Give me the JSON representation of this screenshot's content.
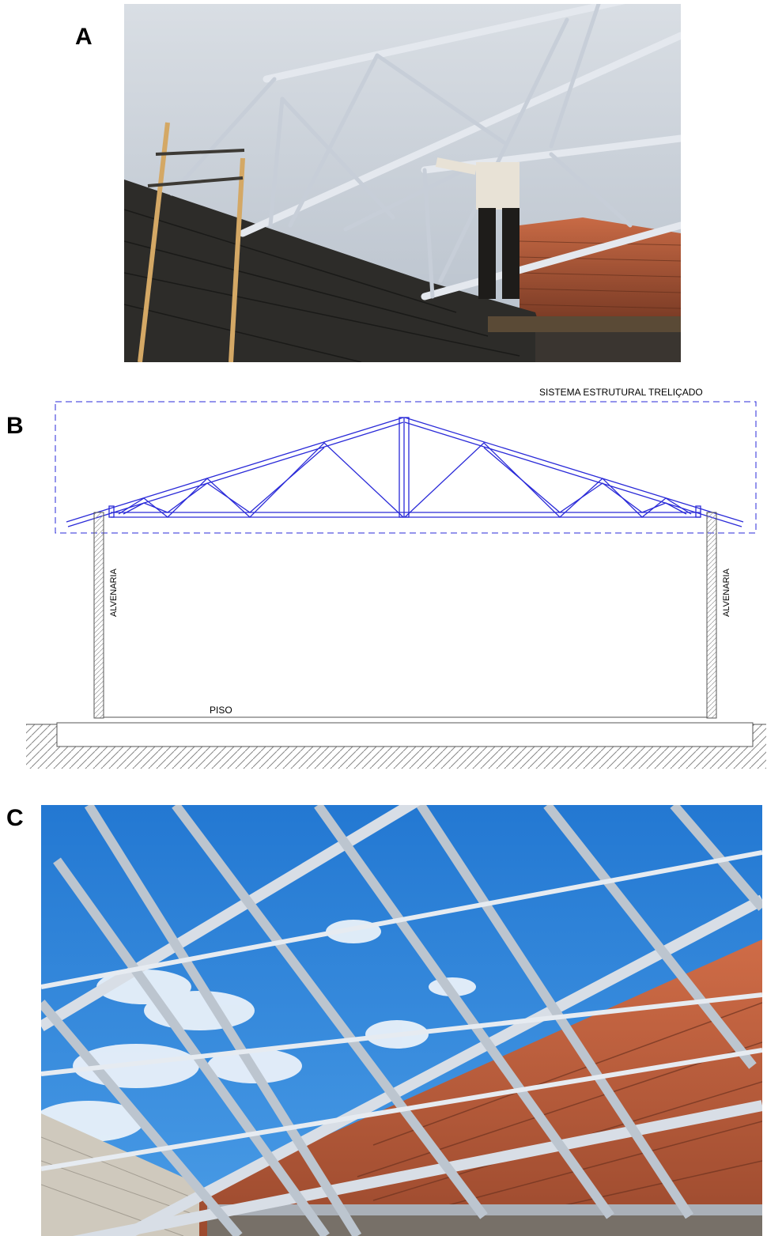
{
  "panels": {
    "a": {
      "letter": "A",
      "colors": {
        "sky": "#c9d0d9",
        "wall": "#2b2b29",
        "brick": "#b85a3c",
        "steel": "#dfe4ea"
      }
    },
    "b": {
      "letter": "B",
      "truss_label": "SISTEMA ESTRUTURAL TRELIÇADO",
      "wall_label_left": "ALVENARIA",
      "wall_label_right": "ALVENARIA",
      "floor_label": "PISO",
      "colors": {
        "truss": "#2a2ad8",
        "lines": "#555555"
      }
    },
    "c": {
      "letter": "C",
      "colors": {
        "sky": "#2f86dc",
        "steel": "#d6dde6",
        "brick": "#c0603e",
        "block": "#c8c2b6"
      }
    }
  }
}
